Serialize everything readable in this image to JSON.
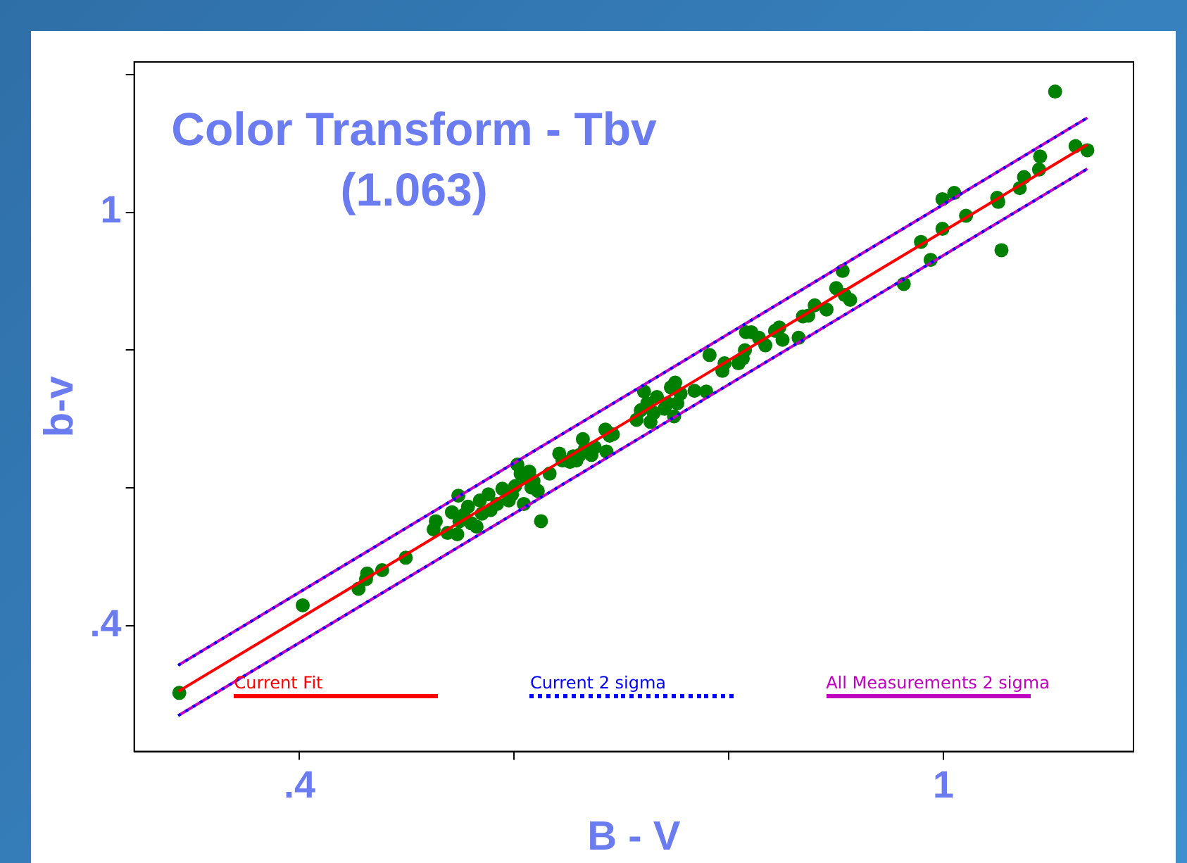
{
  "chart_data": {
    "type": "scatter",
    "title": "Color Transform - Tbv",
    "subtitle": "(1.063)",
    "xlabel": "B - V",
    "ylabel": "b-v",
    "xlim": [
      0.246,
      1.177
    ],
    "ylim": [
      0.218,
      1.218
    ],
    "xticks": [
      {
        "value": 0.4,
        "label": ".4"
      },
      {
        "value": 0.6,
        "label": null
      },
      {
        "value": 0.8,
        "label": null
      },
      1
    ],
    "yticks": [
      {
        "value": 0.4,
        "label": ".4"
      },
      {
        "value": 0.6,
        "label": null
      },
      {
        "value": 0.8,
        "label": null
      },
      1,
      {
        "value": 1.2,
        "label": null
      }
    ],
    "grid": false,
    "legend": "bottom",
    "series": [
      {
        "type": "scatter",
        "color": "#008000",
        "marker": "circle",
        "x": [
          0.288,
          0.403,
          0.455,
          0.462,
          0.463,
          0.477,
          0.499,
          0.525,
          0.527,
          0.538,
          0.542,
          0.547,
          0.548,
          0.549,
          0.553,
          0.557,
          0.56,
          0.565,
          0.568,
          0.57,
          0.576,
          0.578,
          0.584,
          0.589,
          0.595,
          0.598,
          0.601,
          0.603,
          0.606,
          0.609,
          0.611,
          0.614,
          0.616,
          0.618,
          0.622,
          0.625,
          0.633,
          0.642,
          0.645,
          0.652,
          0.655,
          0.658,
          0.661,
          0.664,
          0.666,
          0.672,
          0.675,
          0.685,
          0.686,
          0.689,
          0.692,
          0.714,
          0.718,
          0.721,
          0.724,
          0.727,
          0.73,
          0.733,
          0.74,
          0.743,
          0.746,
          0.749,
          0.75,
          0.752,
          0.755,
          0.768,
          0.779,
          0.782,
          0.794,
          0.796,
          0.809,
          0.813,
          0.815,
          0.816,
          0.821,
          0.828,
          0.834,
          0.843,
          0.847,
          0.85,
          0.865,
          0.869,
          0.874,
          0.88,
          0.891,
          0.9,
          0.906,
          0.908,
          0.913,
          0.963,
          0.979,
          0.988,
          0.999,
          0.999,
          1.01,
          1.021,
          1.05,
          1.051,
          1.054,
          1.071,
          1.075,
          1.089,
          1.09,
          1.104,
          1.123,
          1.134
        ],
        "values": [
          0.303,
          0.43,
          0.454,
          0.468,
          0.476,
          0.481,
          0.499,
          0.54,
          0.552,
          0.535,
          0.565,
          0.533,
          0.589,
          0.552,
          0.561,
          0.573,
          0.549,
          0.544,
          0.582,
          0.563,
          0.591,
          0.568,
          0.577,
          0.599,
          0.582,
          0.591,
          0.603,
          0.634,
          0.621,
          0.577,
          0.615,
          0.624,
          0.601,
          0.61,
          0.596,
          0.552,
          0.621,
          0.65,
          0.64,
          0.638,
          0.646,
          0.64,
          0.648,
          0.671,
          0.657,
          0.648,
          0.659,
          0.685,
          0.653,
          0.676,
          0.678,
          0.699,
          0.713,
          0.74,
          0.723,
          0.696,
          0.709,
          0.732,
          0.715,
          0.723,
          0.746,
          0.704,
          0.753,
          0.723,
          0.737,
          0.741,
          0.74,
          0.793,
          0.77,
          0.781,
          0.781,
          0.788,
          0.8,
          0.826,
          0.826,
          0.818,
          0.807,
          0.828,
          0.833,
          0.815,
          0.818,
          0.849,
          0.85,
          0.865,
          0.859,
          0.89,
          0.915,
          0.88,
          0.873,
          0.896,
          0.957,
          0.931,
          0.976,
          1.019,
          1.028,
          0.995,
          1.021,
          1.015,
          0.945,
          1.035,
          1.051,
          1.062,
          1.081,
          1.175,
          1.096,
          1.09
        ]
      },
      {
        "type": "line",
        "name": "Current Fit",
        "color": "#ff0000",
        "marker": "none",
        "line_style": "solid",
        "x": [
          0.287,
          1.134
        ],
        "values": [
          0.305,
          1.098
        ]
      },
      {
        "type": "line",
        "name": "Current 2 sigma",
        "color": "#0000ff",
        "marker": "none",
        "line_style": "dotted",
        "x": [
          0.287,
          1.134
        ],
        "values": [
          0.343,
          1.137
        ]
      },
      {
        "type": "line",
        "color": "#0000ff",
        "marker": "none",
        "line_style": "dotted",
        "x": [
          0.287,
          1.134
        ],
        "values": [
          0.27,
          1.063
        ]
      },
      {
        "type": "line",
        "name": "All Measurements 2 sigma",
        "color": "#bf00bf",
        "marker": "none",
        "line_style": "solid",
        "x": [
          0.287,
          1.134
        ],
        "values": [
          0.343,
          1.137
        ]
      },
      {
        "type": "line",
        "color": "#bf00bf",
        "marker": "none",
        "line_style": "solid",
        "x": [
          0.287,
          1.134
        ],
        "values": [
          0.27,
          1.063
        ]
      }
    ]
  }
}
